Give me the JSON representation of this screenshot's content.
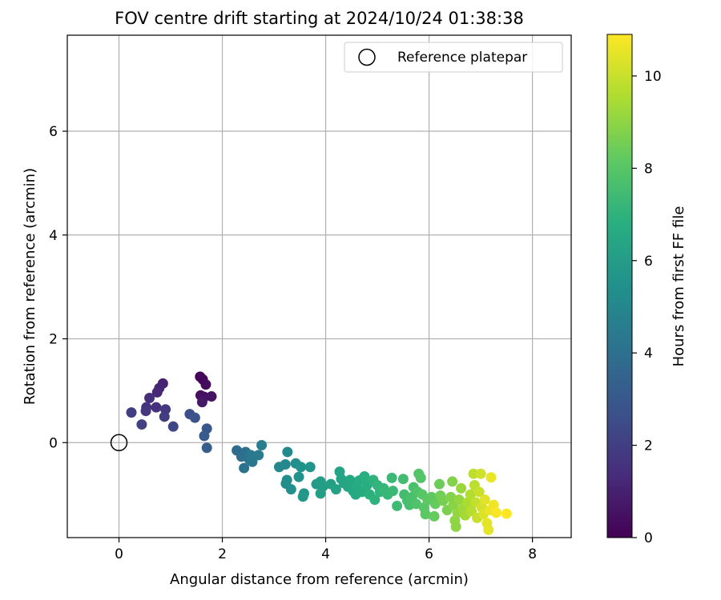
{
  "chart_data": {
    "type": "scatter",
    "title": "FOV centre drift starting at 2024/10/24 01:38:38",
    "xlabel": "Angular distance from reference (arcmin)",
    "ylabel": "Rotation from reference (arcmin)",
    "xlim": [
      -1.0,
      8.75
    ],
    "ylim": [
      -1.83,
      7.85
    ],
    "xticks": [
      0,
      2,
      4,
      6,
      8
    ],
    "yticks": [
      0,
      2,
      4,
      6
    ],
    "grid": true,
    "legend": {
      "placement": "top-right",
      "entries": [
        "Reference platepar"
      ]
    },
    "reference_point": {
      "x": 0,
      "y": 0
    },
    "colorbar": {
      "label": "Hours from first FF file",
      "colormap": "viridis",
      "range": [
        0,
        10.9
      ],
      "ticks": [
        0,
        2,
        4,
        6,
        8,
        10
      ]
    },
    "points": [
      {
        "x": 1.57,
        "y": 1.27,
        "h": 0.1
      },
      {
        "x": 1.62,
        "y": 1.22,
        "h": 0.2
      },
      {
        "x": 1.68,
        "y": 1.12,
        "h": 0.3
      },
      {
        "x": 1.58,
        "y": 0.91,
        "h": 0.4
      },
      {
        "x": 1.65,
        "y": 0.88,
        "h": 0.5
      },
      {
        "x": 1.79,
        "y": 0.89,
        "h": 0.6
      },
      {
        "x": 1.61,
        "y": 0.78,
        "h": 0.7
      },
      {
        "x": 0.85,
        "y": 1.14,
        "h": 1.0
      },
      {
        "x": 0.78,
        "y": 1.05,
        "h": 1.1
      },
      {
        "x": 0.74,
        "y": 0.97,
        "h": 1.2
      },
      {
        "x": 0.59,
        "y": 0.86,
        "h": 1.4
      },
      {
        "x": 0.72,
        "y": 0.68,
        "h": 1.5
      },
      {
        "x": 0.53,
        "y": 0.68,
        "h": 1.6
      },
      {
        "x": 0.52,
        "y": 0.61,
        "h": 1.7
      },
      {
        "x": 0.9,
        "y": 0.64,
        "h": 1.8
      },
      {
        "x": 0.88,
        "y": 0.5,
        "h": 1.9
      },
      {
        "x": 0.24,
        "y": 0.58,
        "h": 2.0
      },
      {
        "x": 0.44,
        "y": 0.35,
        "h": 2.1
      },
      {
        "x": 1.05,
        "y": 0.31,
        "h": 2.3
      },
      {
        "x": 1.37,
        "y": 0.55,
        "h": 2.6
      },
      {
        "x": 1.47,
        "y": 0.48,
        "h": 2.8
      },
      {
        "x": 1.7,
        "y": 0.27,
        "h": 3.0
      },
      {
        "x": 1.65,
        "y": 0.13,
        "h": 3.1
      },
      {
        "x": 1.7,
        "y": -0.1,
        "h": 3.2
      },
      {
        "x": 2.28,
        "y": -0.15,
        "h": 3.8
      },
      {
        "x": 2.37,
        "y": -0.27,
        "h": 3.9
      },
      {
        "x": 2.45,
        "y": -0.18,
        "h": 4.0
      },
      {
        "x": 2.42,
        "y": -0.49,
        "h": 4.1
      },
      {
        "x": 2.52,
        "y": -0.32,
        "h": 4.2
      },
      {
        "x": 2.58,
        "y": -0.37,
        "h": 4.3
      },
      {
        "x": 2.55,
        "y": -0.24,
        "h": 4.4
      },
      {
        "x": 2.7,
        "y": -0.24,
        "h": 4.5
      },
      {
        "x": 2.76,
        "y": -0.05,
        "h": 4.6
      },
      {
        "x": 3.1,
        "y": -0.47,
        "h": 5.0
      },
      {
        "x": 3.22,
        "y": -0.42,
        "h": 5.1
      },
      {
        "x": 3.26,
        "y": -0.18,
        "h": 5.2
      },
      {
        "x": 3.25,
        "y": -0.72,
        "h": 5.3
      },
      {
        "x": 3.23,
        "y": -0.79,
        "h": 5.3
      },
      {
        "x": 3.33,
        "y": -0.9,
        "h": 5.4
      },
      {
        "x": 3.42,
        "y": -0.4,
        "h": 5.4
      },
      {
        "x": 3.52,
        "y": -0.47,
        "h": 5.5
      },
      {
        "x": 3.48,
        "y": -0.66,
        "h": 5.5
      },
      {
        "x": 3.7,
        "y": -0.47,
        "h": 5.6
      },
      {
        "x": 3.58,
        "y": -0.98,
        "h": 5.7
      },
      {
        "x": 3.56,
        "y": -1.04,
        "h": 5.8
      },
      {
        "x": 3.82,
        "y": -0.8,
        "h": 5.9
      },
      {
        "x": 3.9,
        "y": -0.75,
        "h": 6.0
      },
      {
        "x": 3.95,
        "y": -0.84,
        "h": 6.0
      },
      {
        "x": 3.9,
        "y": -0.98,
        "h": 6.1
      },
      {
        "x": 4.1,
        "y": -0.8,
        "h": 6.1
      },
      {
        "x": 4.2,
        "y": -0.9,
        "h": 6.2
      },
      {
        "x": 4.27,
        "y": -0.56,
        "h": 6.3
      },
      {
        "x": 4.3,
        "y": -0.7,
        "h": 6.3
      },
      {
        "x": 4.35,
        "y": -0.78,
        "h": 6.4
      },
      {
        "x": 4.43,
        "y": -0.85,
        "h": 6.4
      },
      {
        "x": 4.47,
        "y": -0.72,
        "h": 6.5
      },
      {
        "x": 4.53,
        "y": -0.93,
        "h": 6.5
      },
      {
        "x": 4.6,
        "y": -0.85,
        "h": 6.6
      },
      {
        "x": 4.58,
        "y": -1.0,
        "h": 6.6
      },
      {
        "x": 4.65,
        "y": -0.73,
        "h": 6.7
      },
      {
        "x": 4.7,
        "y": -0.95,
        "h": 6.7
      },
      {
        "x": 4.75,
        "y": -0.65,
        "h": 6.8
      },
      {
        "x": 4.8,
        "y": -0.82,
        "h": 6.8
      },
      {
        "x": 4.85,
        "y": -1.0,
        "h": 6.9
      },
      {
        "x": 4.92,
        "y": -0.72,
        "h": 7.0
      },
      {
        "x": 4.95,
        "y": -1.1,
        "h": 7.0
      },
      {
        "x": 5.0,
        "y": -0.82,
        "h": 7.1
      },
      {
        "x": 5.05,
        "y": -0.95,
        "h": 7.1
      },
      {
        "x": 5.12,
        "y": -0.88,
        "h": 7.2
      },
      {
        "x": 5.2,
        "y": -1.0,
        "h": 7.2
      },
      {
        "x": 5.28,
        "y": -0.68,
        "h": 7.3
      },
      {
        "x": 5.3,
        "y": -0.93,
        "h": 7.3
      },
      {
        "x": 5.38,
        "y": -1.22,
        "h": 7.4
      },
      {
        "x": 5.5,
        "y": -0.7,
        "h": 7.5
      },
      {
        "x": 5.52,
        "y": -1.0,
        "h": 7.5
      },
      {
        "x": 5.58,
        "y": -1.12,
        "h": 7.6
      },
      {
        "x": 5.62,
        "y": -1.2,
        "h": 7.6
      },
      {
        "x": 5.67,
        "y": -1.05,
        "h": 7.7
      },
      {
        "x": 5.7,
        "y": -0.86,
        "h": 7.7
      },
      {
        "x": 5.75,
        "y": -1.18,
        "h": 7.8
      },
      {
        "x": 5.78,
        "y": -0.95,
        "h": 7.8
      },
      {
        "x": 5.8,
        "y": -0.6,
        "h": 7.9
      },
      {
        "x": 5.84,
        "y": -0.68,
        "h": 7.9
      },
      {
        "x": 5.87,
        "y": -1.0,
        "h": 8.0
      },
      {
        "x": 5.9,
        "y": -1.25,
        "h": 8.0
      },
      {
        "x": 5.93,
        "y": -1.38,
        "h": 8.1
      },
      {
        "x": 5.97,
        "y": -1.1,
        "h": 8.1
      },
      {
        "x": 6.05,
        "y": -1.05,
        "h": 8.2
      },
      {
        "x": 6.1,
        "y": -1.42,
        "h": 8.3
      },
      {
        "x": 6.12,
        "y": -1.18,
        "h": 8.3
      },
      {
        "x": 6.2,
        "y": -0.8,
        "h": 8.4
      },
      {
        "x": 6.22,
        "y": -1.02,
        "h": 8.5
      },
      {
        "x": 6.27,
        "y": -1.12,
        "h": 8.6
      },
      {
        "x": 6.35,
        "y": -1.3,
        "h": 8.7
      },
      {
        "x": 6.42,
        "y": -1.05,
        "h": 8.8
      },
      {
        "x": 6.45,
        "y": -0.75,
        "h": 8.8
      },
      {
        "x": 6.47,
        "y": -1.2,
        "h": 8.9
      },
      {
        "x": 6.5,
        "y": -1.5,
        "h": 9.0
      },
      {
        "x": 6.52,
        "y": -1.62,
        "h": 9.0
      },
      {
        "x": 6.55,
        "y": -1.35,
        "h": 9.1
      },
      {
        "x": 6.58,
        "y": -1.1,
        "h": 9.1
      },
      {
        "x": 6.62,
        "y": -0.88,
        "h": 9.2
      },
      {
        "x": 6.65,
        "y": -1.28,
        "h": 9.3
      },
      {
        "x": 6.7,
        "y": -1.4,
        "h": 9.4
      },
      {
        "x": 6.75,
        "y": -1.15,
        "h": 9.5
      },
      {
        "x": 6.8,
        "y": -1.0,
        "h": 9.6
      },
      {
        "x": 6.82,
        "y": -1.32,
        "h": 9.7
      },
      {
        "x": 6.86,
        "y": -0.6,
        "h": 9.8
      },
      {
        "x": 6.88,
        "y": -0.82,
        "h": 9.8
      },
      {
        "x": 6.9,
        "y": -1.15,
        "h": 9.9
      },
      {
        "x": 6.93,
        "y": -1.45,
        "h": 10.0
      },
      {
        "x": 6.97,
        "y": -0.95,
        "h": 10.0
      },
      {
        "x": 7.0,
        "y": -0.6,
        "h": 10.1
      },
      {
        "x": 7.02,
        "y": -1.25,
        "h": 10.2
      },
      {
        "x": 7.05,
        "y": -1.38,
        "h": 10.3
      },
      {
        "x": 7.08,
        "y": -1.1,
        "h": 10.4
      },
      {
        "x": 7.12,
        "y": -1.55,
        "h": 10.5
      },
      {
        "x": 7.15,
        "y": -1.68,
        "h": 10.5
      },
      {
        "x": 7.18,
        "y": -1.3,
        "h": 10.6
      },
      {
        "x": 7.2,
        "y": -0.67,
        "h": 10.6
      },
      {
        "x": 7.25,
        "y": -1.2,
        "h": 10.7
      },
      {
        "x": 7.3,
        "y": -1.35,
        "h": 10.8
      },
      {
        "x": 7.5,
        "y": -1.37,
        "h": 10.9
      }
    ]
  }
}
